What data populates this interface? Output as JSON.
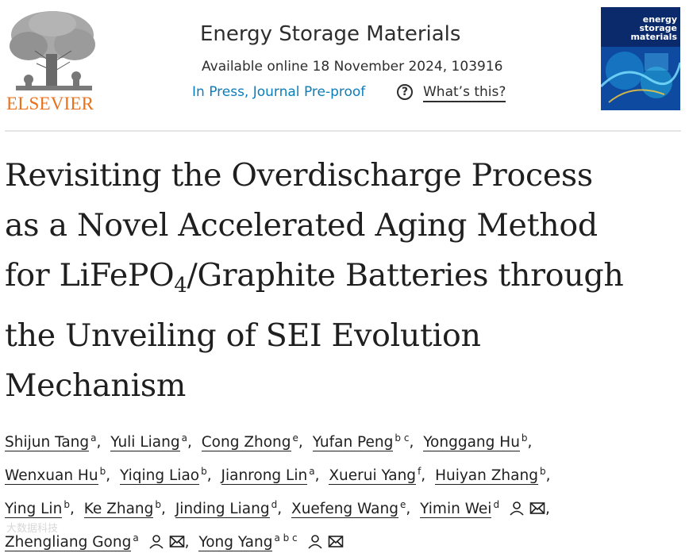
{
  "header": {
    "publisher": "ELSEVIER",
    "journal_title": "Energy Storage Materials",
    "available_online": "Available online 18 November 2024, 103916",
    "status_link": "In Press, Journal Pre-proof",
    "help_icon": "?",
    "whats_this": "What’s this?",
    "cover": {
      "title_line1": "energy",
      "title_line2": "storage",
      "title_line3": "materials"
    }
  },
  "article": {
    "title_line1": "Revisiting the Overdischarge Process",
    "title_line2": "as a Novel Accelerated Aging Method",
    "title_line3_a": "for LiFePO",
    "title_line3_sub": "4",
    "title_line3_b": "/Graphite Batteries through",
    "title_line4": "the Unveiling of SEI Evolution",
    "title_line5": "Mechanism"
  },
  "authors": [
    {
      "name": "Shijun Tang",
      "aff": "a"
    },
    {
      "name": "Yuli Liang",
      "aff": "a"
    },
    {
      "name": "Cong Zhong",
      "aff": "e"
    },
    {
      "name": "Yufan Peng",
      "aff": "b c"
    },
    {
      "name": "Yonggang Hu",
      "aff": "b"
    },
    {
      "name": "Wenxuan Hu",
      "aff": "b"
    },
    {
      "name": "Yiqing Liao",
      "aff": "b"
    },
    {
      "name": "Jianrong Lin",
      "aff": "a"
    },
    {
      "name": "Xuerui Yang",
      "aff": "f"
    },
    {
      "name": "Huiyan Zhang",
      "aff": "b"
    },
    {
      "name": "Ying Lin",
      "aff": "b"
    },
    {
      "name": "Ke Zhang",
      "aff": "b"
    },
    {
      "name": "Jinding Liang",
      "aff": "d"
    },
    {
      "name": "Xuefeng Wang",
      "aff": "e"
    },
    {
      "name": "Yimin Wei",
      "aff": "d"
    },
    {
      "name": "Zhengliang Gong",
      "aff": "a"
    },
    {
      "name": "Yong Yang",
      "aff": "a b c"
    }
  ],
  "separator": ",",
  "watermark": "大数据科技",
  "colors": {
    "elsevier_orange": "#e9711c",
    "link_blue": "#0c7dbb",
    "cover_blue": "#0a2a6b"
  }
}
